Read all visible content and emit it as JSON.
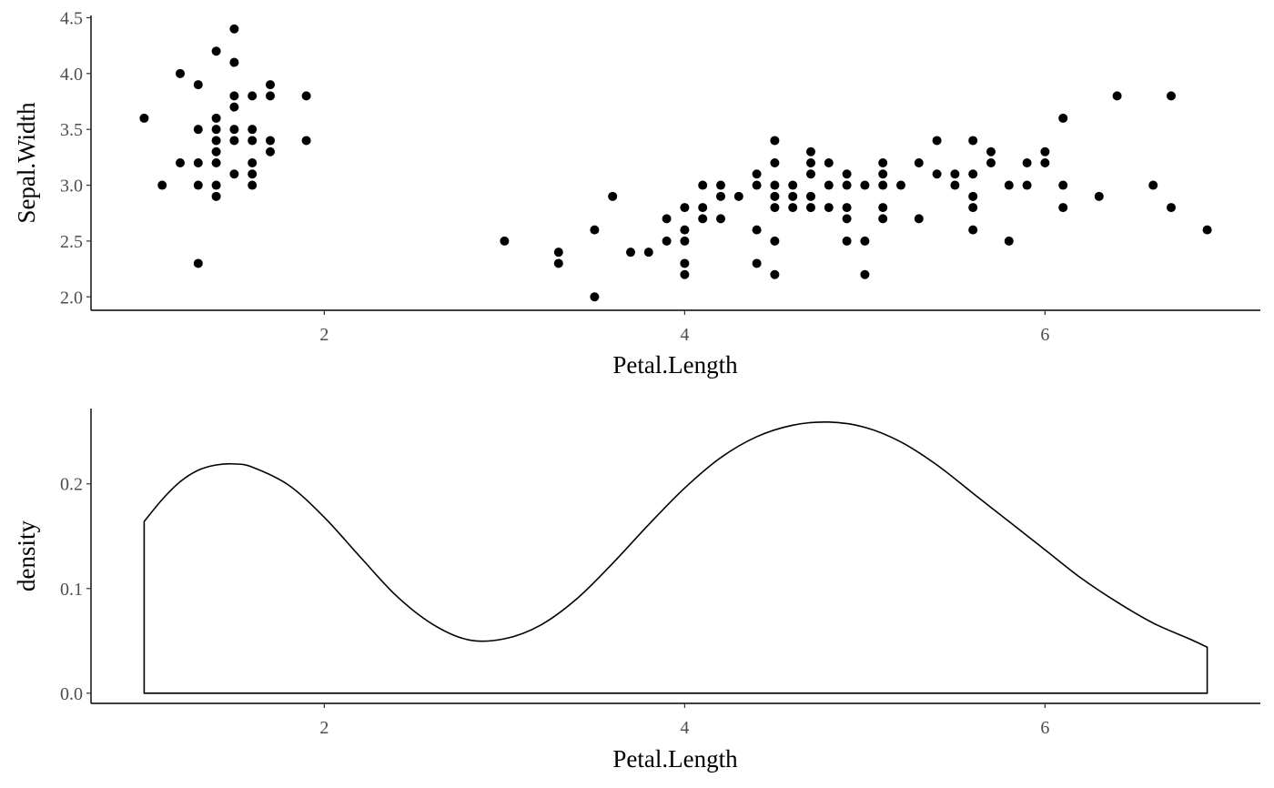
{
  "chart_data": [
    {
      "type": "scatter",
      "xlabel": "Petal.Length",
      "ylabel": "Sepal.Width",
      "xlim": [
        0.705,
        7.195
      ],
      "ylim": [
        1.88,
        4.52
      ],
      "xticks": [
        2,
        4,
        6
      ],
      "xtick_labels": [
        "2",
        "4",
        "6"
      ],
      "yticks": [
        2.0,
        2.5,
        3.0,
        3.5,
        4.0,
        4.5
      ],
      "ytick_labels": [
        "2.0",
        "2.5",
        "3.0",
        "3.5",
        "4.0",
        "4.5"
      ],
      "grid": false,
      "points": [
        [
          1.0,
          3.6
        ],
        [
          1.1,
          3.0
        ],
        [
          1.2,
          4.0
        ],
        [
          1.2,
          3.2
        ],
        [
          1.3,
          3.9
        ],
        [
          1.3,
          3.5
        ],
        [
          1.3,
          3.2
        ],
        [
          1.3,
          3.0
        ],
        [
          1.3,
          2.3
        ],
        [
          1.4,
          4.2
        ],
        [
          1.4,
          3.6
        ],
        [
          1.4,
          3.5
        ],
        [
          1.4,
          3.4
        ],
        [
          1.4,
          3.3
        ],
        [
          1.4,
          3.2
        ],
        [
          1.4,
          3.0
        ],
        [
          1.4,
          2.9
        ],
        [
          1.5,
          4.4
        ],
        [
          1.5,
          4.1
        ],
        [
          1.5,
          3.8
        ],
        [
          1.5,
          3.7
        ],
        [
          1.5,
          3.5
        ],
        [
          1.5,
          3.4
        ],
        [
          1.5,
          3.1
        ],
        [
          1.6,
          3.8
        ],
        [
          1.6,
          3.5
        ],
        [
          1.6,
          3.4
        ],
        [
          1.6,
          3.2
        ],
        [
          1.6,
          3.1
        ],
        [
          1.6,
          3.0
        ],
        [
          1.7,
          3.9
        ],
        [
          1.7,
          3.8
        ],
        [
          1.7,
          3.4
        ],
        [
          1.7,
          3.3
        ],
        [
          1.9,
          3.8
        ],
        [
          1.9,
          3.4
        ],
        [
          3.0,
          2.5
        ],
        [
          3.3,
          2.4
        ],
        [
          3.3,
          2.3
        ],
        [
          3.5,
          2.6
        ],
        [
          3.5,
          2.0
        ],
        [
          3.6,
          2.9
        ],
        [
          3.7,
          2.4
        ],
        [
          3.8,
          2.4
        ],
        [
          3.9,
          2.7
        ],
        [
          3.9,
          2.5
        ],
        [
          4.0,
          2.8
        ],
        [
          4.0,
          2.6
        ],
        [
          4.0,
          2.5
        ],
        [
          4.0,
          2.3
        ],
        [
          4.0,
          2.2
        ],
        [
          4.1,
          3.0
        ],
        [
          4.1,
          2.8
        ],
        [
          4.1,
          2.7
        ],
        [
          4.2,
          3.0
        ],
        [
          4.2,
          2.9
        ],
        [
          4.2,
          2.7
        ],
        [
          4.3,
          2.9
        ],
        [
          4.4,
          3.1
        ],
        [
          4.4,
          3.0
        ],
        [
          4.4,
          2.6
        ],
        [
          4.4,
          2.3
        ],
        [
          4.5,
          3.4
        ],
        [
          4.5,
          3.2
        ],
        [
          4.5,
          3.0
        ],
        [
          4.5,
          2.9
        ],
        [
          4.5,
          2.8
        ],
        [
          4.5,
          2.5
        ],
        [
          4.5,
          2.2
        ],
        [
          4.6,
          3.0
        ],
        [
          4.6,
          2.9
        ],
        [
          4.6,
          2.8
        ],
        [
          4.7,
          3.3
        ],
        [
          4.7,
          3.2
        ],
        [
          4.7,
          3.1
        ],
        [
          4.7,
          2.9
        ],
        [
          4.7,
          2.8
        ],
        [
          4.8,
          3.2
        ],
        [
          4.8,
          3.0
        ],
        [
          4.8,
          2.8
        ],
        [
          4.9,
          3.1
        ],
        [
          4.9,
          3.0
        ],
        [
          4.9,
          2.8
        ],
        [
          4.9,
          2.7
        ],
        [
          4.9,
          2.5
        ],
        [
          5.0,
          3.0
        ],
        [
          5.0,
          2.5
        ],
        [
          5.0,
          2.2
        ],
        [
          5.1,
          3.2
        ],
        [
          5.1,
          3.1
        ],
        [
          5.1,
          3.0
        ],
        [
          5.1,
          2.8
        ],
        [
          5.1,
          2.7
        ],
        [
          5.2,
          3.0
        ],
        [
          5.3,
          3.2
        ],
        [
          5.3,
          2.7
        ],
        [
          5.4,
          3.4
        ],
        [
          5.4,
          3.1
        ],
        [
          5.5,
          3.1
        ],
        [
          5.5,
          3.0
        ],
        [
          5.6,
          3.4
        ],
        [
          5.6,
          3.1
        ],
        [
          5.6,
          2.9
        ],
        [
          5.6,
          2.8
        ],
        [
          5.6,
          2.6
        ],
        [
          5.7,
          3.3
        ],
        [
          5.7,
          3.2
        ],
        [
          5.8,
          3.0
        ],
        [
          5.8,
          2.5
        ],
        [
          5.9,
          3.2
        ],
        [
          5.9,
          3.0
        ],
        [
          6.0,
          3.3
        ],
        [
          6.0,
          3.2
        ],
        [
          6.1,
          3.6
        ],
        [
          6.1,
          3.0
        ],
        [
          6.1,
          2.8
        ],
        [
          6.3,
          2.9
        ],
        [
          6.4,
          3.8
        ],
        [
          6.6,
          3.0
        ],
        [
          6.7,
          3.8
        ],
        [
          6.7,
          2.8
        ],
        [
          6.9,
          2.6
        ]
      ]
    },
    {
      "type": "area",
      "xlabel": "Petal.Length",
      "ylabel": "density",
      "xlim": [
        0.705,
        7.195
      ],
      "ylim": [
        -0.0097,
        0.2719
      ],
      "xticks": [
        2,
        4,
        6
      ],
      "xtick_labels": [
        "2",
        "4",
        "6"
      ],
      "yticks": [
        0.0,
        0.1,
        0.2
      ],
      "ytick_labels": [
        "0.0",
        "0.1",
        "0.2"
      ],
      "grid": false,
      "x": [
        1.0,
        1.1,
        1.2,
        1.3,
        1.4,
        1.5,
        1.6,
        1.8,
        2.0,
        2.2,
        2.4,
        2.6,
        2.8,
        3.0,
        3.2,
        3.4,
        3.6,
        3.8,
        4.0,
        4.2,
        4.4,
        4.6,
        4.8,
        5.0,
        5.2,
        5.4,
        5.6,
        5.8,
        6.0,
        6.2,
        6.4,
        6.6,
        6.8,
        6.9
      ],
      "y": [
        0.164,
        0.185,
        0.202,
        0.213,
        0.218,
        0.219,
        0.216,
        0.199,
        0.168,
        0.13,
        0.093,
        0.066,
        0.051,
        0.052,
        0.065,
        0.09,
        0.124,
        0.161,
        0.196,
        0.225,
        0.245,
        0.256,
        0.259,
        0.254,
        0.24,
        0.218,
        0.191,
        0.164,
        0.137,
        0.11,
        0.087,
        0.067,
        0.052,
        0.044
      ]
    }
  ]
}
